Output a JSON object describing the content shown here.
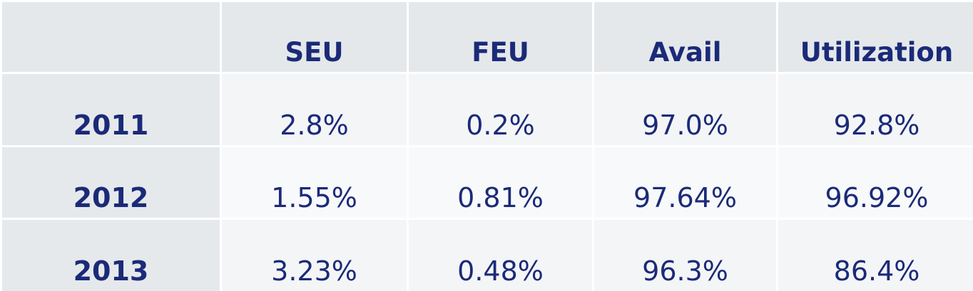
{
  "table": {
    "columns": [
      "SEU",
      "FEU",
      "Avail",
      "Utilization"
    ],
    "rows": [
      {
        "label": "2011",
        "values": [
          "2.8%",
          "0.2%",
          "97.0%",
          "92.8%"
        ]
      },
      {
        "label": "2012",
        "values": [
          "1.55%",
          "0.81%",
          "97.64%",
          "96.92%"
        ]
      },
      {
        "label": "2013",
        "values": [
          "3.23%",
          "0.48%",
          "96.3%",
          "86.4%"
        ]
      }
    ]
  }
}
